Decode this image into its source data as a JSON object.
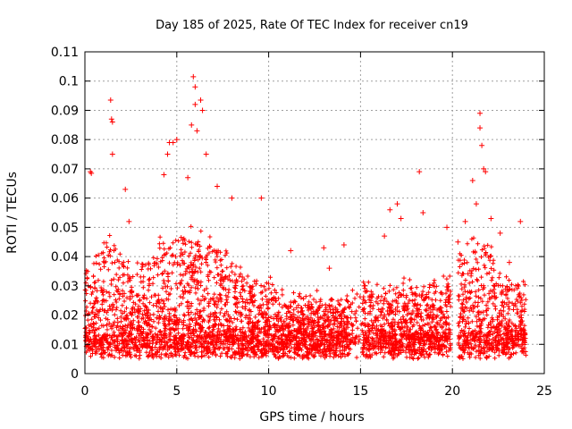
{
  "chart_data": {
    "type": "scatter",
    "title": "Day 185 of 2025, Rate Of TEC Index for receiver cn19",
    "xlabel": "GPS time / hours",
    "ylabel": "ROTI / TECUs",
    "xlim": [
      0,
      25
    ],
    "ylim": [
      0,
      0.11
    ],
    "xticks": [
      0,
      5,
      10,
      15,
      20,
      25
    ],
    "xtick_labels": [
      "0",
      "5",
      "10",
      "15",
      "20",
      "25"
    ],
    "yticks": [
      0,
      0.01,
      0.02,
      0.03,
      0.04,
      0.05,
      0.06,
      0.07,
      0.08,
      0.09,
      0.1,
      0.11
    ],
    "ytick_labels": [
      "0",
      "0.01",
      "0.02",
      "0.03",
      "0.04",
      "0.05",
      "0.06",
      "0.07",
      "0.08",
      "0.09",
      "0.1",
      "0.11"
    ],
    "grid": true,
    "marker": "plus",
    "series": [
      {
        "name": "ROTI",
        "color": "#ff0000",
        "x": [
          0.3,
          0.35,
          1.4,
          1.45,
          1.5,
          1.5,
          2.2,
          2.4,
          4.3,
          4.5,
          4.6,
          4.8,
          5.0,
          5.6,
          5.8,
          5.9,
          6.0,
          6.0,
          6.1,
          6.3,
          6.4,
          6.6,
          7.2,
          8.0,
          9.6,
          11.2,
          13.0,
          13.3,
          14.1,
          15.2,
          16.3,
          16.6,
          17.0,
          17.2,
          18.2,
          18.4,
          19.7,
          20.3,
          20.7,
          21.1,
          21.3,
          21.5,
          21.5,
          21.6,
          21.7,
          21.8,
          22.1,
          22.6,
          23.1,
          23.7
        ],
        "y": [
          0.069,
          0.0685,
          0.0935,
          0.087,
          0.086,
          0.075,
          0.063,
          0.052,
          0.068,
          0.075,
          0.079,
          0.079,
          0.08,
          0.067,
          0.085,
          0.1015,
          0.098,
          0.092,
          0.083,
          0.0935,
          0.09,
          0.075,
          0.064,
          0.06,
          0.06,
          0.042,
          0.043,
          0.036,
          0.044,
          0.03,
          0.047,
          0.056,
          0.058,
          0.053,
          0.069,
          0.055,
          0.05,
          0.045,
          0.052,
          0.066,
          0.058,
          0.089,
          0.084,
          0.078,
          0.07,
          0.069,
          0.053,
          0.048,
          0.038,
          0.052
        ]
      }
    ]
  }
}
